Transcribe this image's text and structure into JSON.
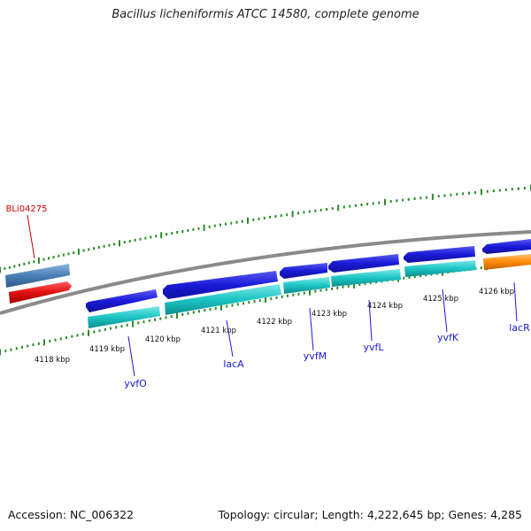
{
  "title": "Bacillus licheniformis ATCC 14580, complete genome",
  "accession": "Accession: NC_006322",
  "summary": "Topology: circular; Length: 4,222,645 bp; Genes: 4,285",
  "colors": {
    "backbone": "#8a8a8a",
    "tick": "#2a8a2a",
    "forward_gene": "#1a1ad8",
    "forward_gene_light": "#5a5af0",
    "cds": "#1cc4c4",
    "cds_light": "#7ae8e8",
    "other_gene": "#4a7fb5",
    "red_gene": "#e01010",
    "orange_gene": "#ff8a00",
    "label_blue": "#1a1ad8",
    "label_red": "#cc0000"
  },
  "ruler": {
    "labels": [
      "4118 kbp",
      "4119 kbp",
      "4120 kbp",
      "4121 kbp",
      "4122 kbp",
      "4123 kbp",
      "4124 kbp",
      "4125 kbp",
      "4126 kbp"
    ]
  },
  "gene_labels": [
    {
      "name": "yvfO"
    },
    {
      "name": "lacA"
    },
    {
      "name": "yvfM"
    },
    {
      "name": "yvfL"
    },
    {
      "name": "yvfK"
    },
    {
      "name": "lacR"
    },
    {
      "name": "BLi04275"
    }
  ]
}
